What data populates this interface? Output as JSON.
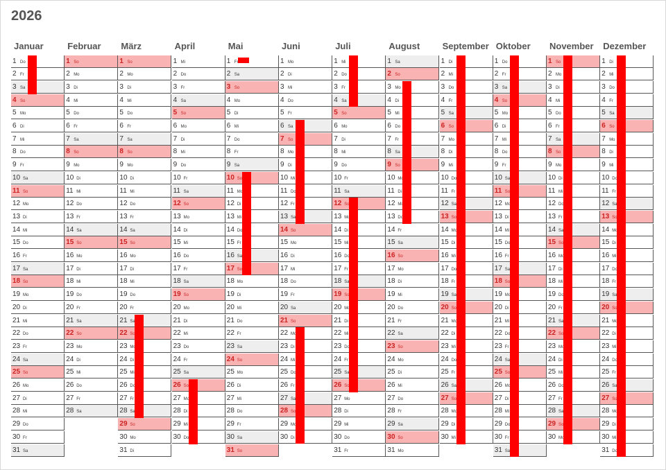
{
  "title": "2026",
  "year": 2026,
  "months": [
    "Januar",
    "Februar",
    "März",
    "April",
    "Mai",
    "Juni",
    "Juli",
    "August",
    "September",
    "Oktober",
    "November",
    "Dezember"
  ],
  "days_in_month": [
    31,
    28,
    31,
    30,
    31,
    30,
    31,
    31,
    30,
    31,
    30,
    31
  ],
  "first_weekday_index": [
    3,
    6,
    6,
    2,
    4,
    0,
    2,
    5,
    1,
    3,
    6,
    1
  ],
  "weekday_labels": [
    "Mo",
    "Di",
    "Mi",
    "Do",
    "Fr",
    "Sa",
    "So"
  ],
  "colors": {
    "sunday_fill": "#f9b3b3",
    "saturday_fill": "#eeeeee",
    "sunday_text": "#cc2222",
    "marker_bar": "#ff0000",
    "grid_line": "#555555"
  },
  "marked_ranges": [
    {
      "month": 1,
      "from_day": 1,
      "to_day": 3
    },
    {
      "month": 3,
      "from_day": 21,
      "to_day": 28
    },
    {
      "month": 4,
      "from_day": 26,
      "to_day": 30
    },
    {
      "month": 5,
      "from_day": 1,
      "to_day": 1
    },
    {
      "month": 5,
      "from_day": 10,
      "to_day": 17
    },
    {
      "month": 6,
      "from_day": 6,
      "to_day": 13
    },
    {
      "month": 6,
      "from_day": 22,
      "to_day": 30
    },
    {
      "month": 7,
      "from_day": 1,
      "to_day": 4
    },
    {
      "month": 7,
      "from_day": 12,
      "to_day": 26
    },
    {
      "month": 8,
      "from_day": 3,
      "to_day": 13
    },
    {
      "month": 9,
      "from_day": 1,
      "to_day": 30
    },
    {
      "month": 10,
      "from_day": 1,
      "to_day": 31
    },
    {
      "month": 11,
      "from_day": 1,
      "to_day": 30
    },
    {
      "month": 12,
      "from_day": 1,
      "to_day": 31
    }
  ]
}
